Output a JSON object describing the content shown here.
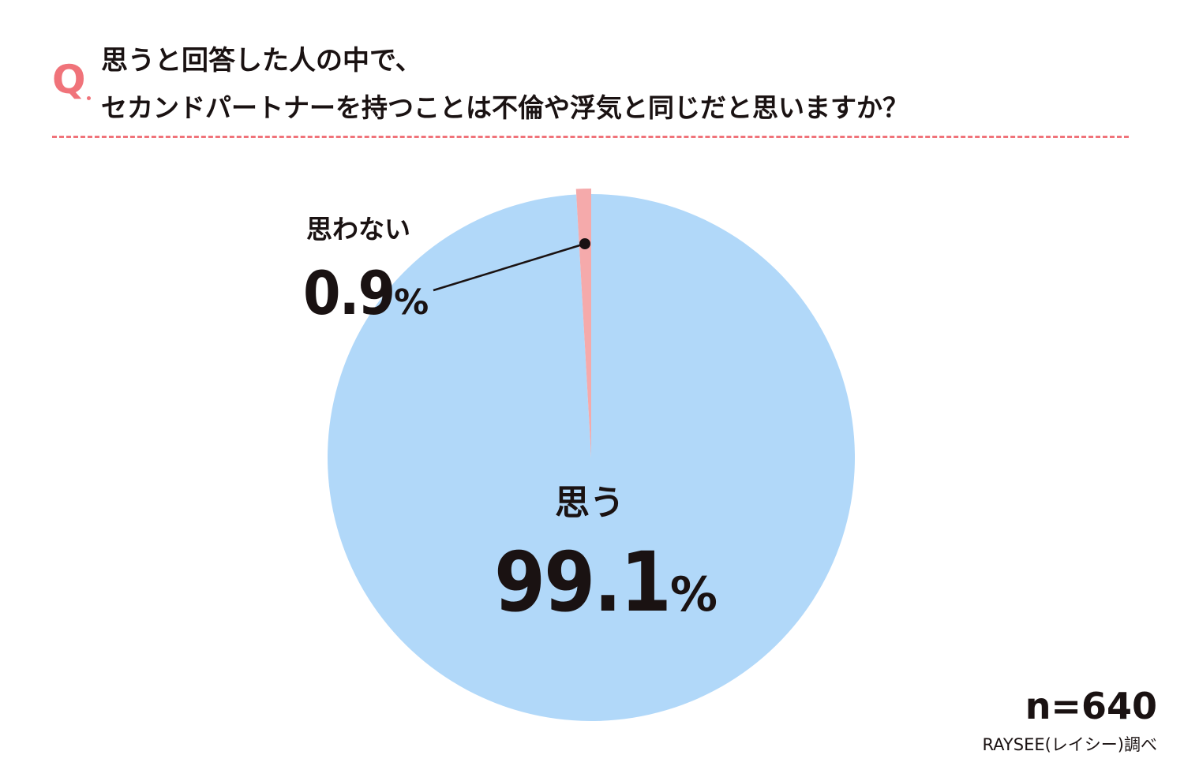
{
  "question": {
    "marker": "Q",
    "line1": "思うと回答した人の中で、",
    "line2": "セカンドパートナーを持つことは不倫や浮気と同じだと思いますか？"
  },
  "chart_data": {
    "type": "pie",
    "slices": [
      {
        "name": "思う",
        "value": 99.1,
        "display": "99.1",
        "unit": "%",
        "color": "#b1d8f9"
      },
      {
        "name": "思わない",
        "value": 0.9,
        "display": "0.9",
        "unit": "%",
        "color": "#f5aaab"
      }
    ]
  },
  "sample_size": "n=640",
  "source": "RAYSEE(レイシー)調べ",
  "colors": {
    "accent": "#f0737a",
    "text": "#1a1212"
  }
}
